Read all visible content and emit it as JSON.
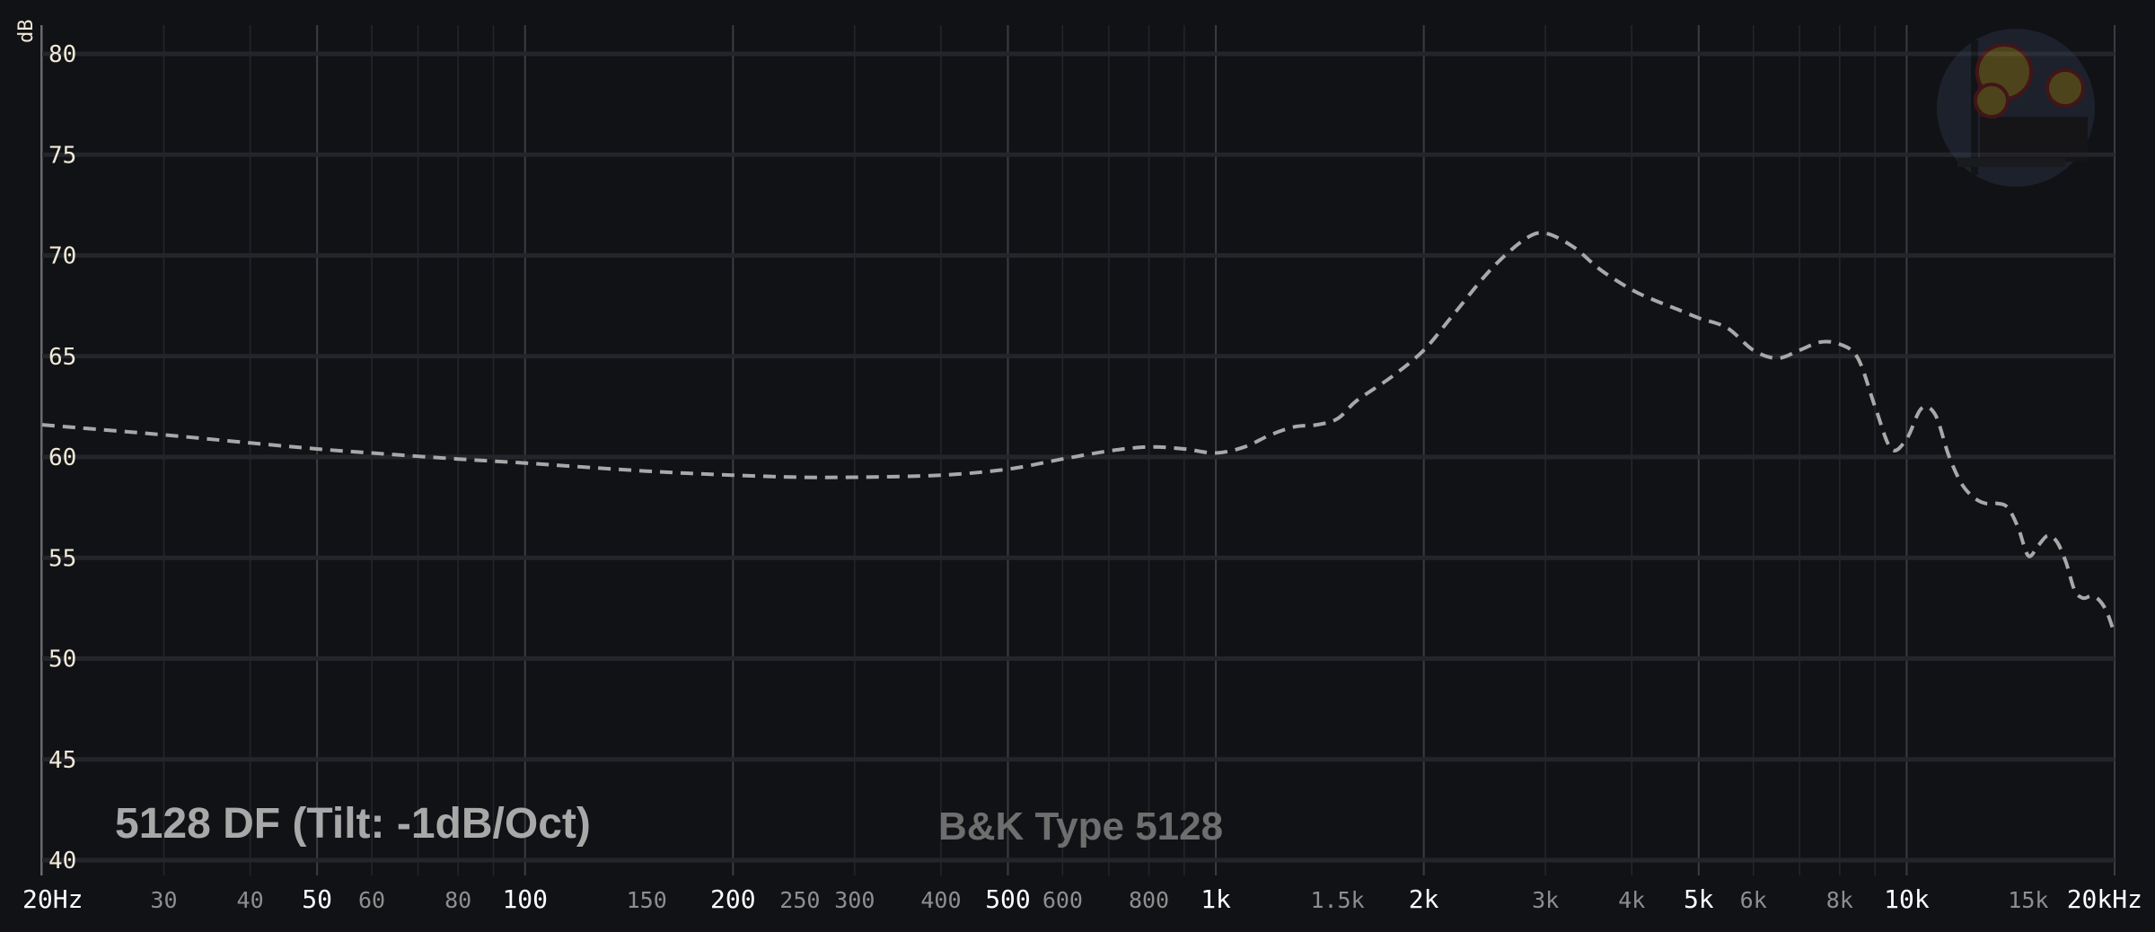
{
  "chart_data": {
    "type": "line",
    "ylabel": "dB",
    "xlabel": "",
    "xscale": "log",
    "xlim": [
      20,
      20000
    ],
    "ylim": [
      40,
      81
    ],
    "grid": true,
    "yticks": [
      40,
      45,
      50,
      55,
      60,
      65,
      70,
      75,
      80
    ],
    "xticks": [
      {
        "value": 20,
        "label": "20Hz",
        "major": true
      },
      {
        "value": 30,
        "label": "30",
        "major": false
      },
      {
        "value": 40,
        "label": "40",
        "major": false
      },
      {
        "value": 50,
        "label": "50",
        "major": true
      },
      {
        "value": 60,
        "label": "60",
        "major": false
      },
      {
        "value": 80,
        "label": "80",
        "major": false
      },
      {
        "value": 100,
        "label": "100",
        "major": true
      },
      {
        "value": 150,
        "label": "150",
        "major": false
      },
      {
        "value": 200,
        "label": "200",
        "major": true
      },
      {
        "value": 250,
        "label": "250",
        "major": false
      },
      {
        "value": 300,
        "label": "300",
        "major": false
      },
      {
        "value": 400,
        "label": "400",
        "major": false
      },
      {
        "value": 500,
        "label": "500",
        "major": true
      },
      {
        "value": 600,
        "label": "600",
        "major": false
      },
      {
        "value": 800,
        "label": "800",
        "major": false
      },
      {
        "value": 1000,
        "label": "1k",
        "major": true
      },
      {
        "value": 1500,
        "label": "1.5k",
        "major": false
      },
      {
        "value": 2000,
        "label": "2k",
        "major": true
      },
      {
        "value": 3000,
        "label": "3k",
        "major": false
      },
      {
        "value": 4000,
        "label": "4k",
        "major": false
      },
      {
        "value": 5000,
        "label": "5k",
        "major": true
      },
      {
        "value": 6000,
        "label": "6k",
        "major": false
      },
      {
        "value": 8000,
        "label": "8k",
        "major": false
      },
      {
        "value": 10000,
        "label": "10k",
        "major": true
      },
      {
        "value": 15000,
        "label": "15k",
        "major": false
      },
      {
        "value": 20000,
        "label": "20kHz",
        "major": true
      }
    ],
    "series": [
      {
        "name": "5128 DF (Tilt: -1dB/Oct)",
        "color": "#a8a8a8",
        "style": "dashed",
        "x": [
          20,
          30,
          40,
          50,
          60,
          80,
          100,
          150,
          200,
          250,
          300,
          400,
          500,
          600,
          700,
          800,
          900,
          1000,
          1100,
          1200,
          1300,
          1400,
          1500,
          1600,
          1800,
          2000,
          2200,
          2500,
          2800,
          3000,
          3300,
          3600,
          4000,
          4300,
          4600,
          5000,
          5500,
          6000,
          6500,
          7000,
          7500,
          8000,
          8500,
          9000,
          9500,
          10000,
          10500,
          11000,
          11500,
          12000,
          12500,
          13000,
          13500,
          14000,
          14500,
          15000,
          15500,
          16000,
          16500,
          17000,
          17500,
          18000,
          18500,
          19000,
          19500,
          20000
        ],
        "y": [
          61.6,
          61.1,
          60.7,
          60.4,
          60.2,
          59.9,
          59.7,
          59.3,
          59.1,
          59.0,
          59.0,
          59.1,
          59.4,
          59.9,
          60.3,
          60.5,
          60.4,
          60.2,
          60.5,
          61.1,
          61.5,
          61.6,
          61.9,
          62.8,
          64.0,
          65.3,
          67.0,
          69.3,
          70.8,
          71.1,
          70.4,
          69.3,
          68.3,
          67.8,
          67.4,
          66.9,
          66.4,
          65.3,
          64.9,
          65.3,
          65.7,
          65.6,
          64.9,
          62.5,
          60.4,
          60.9,
          62.4,
          62.1,
          60.1,
          58.7,
          58.0,
          57.7,
          57.7,
          57.5,
          56.5,
          55.1,
          55.6,
          56.1,
          55.8,
          54.8,
          53.4,
          53.0,
          53.1,
          52.9,
          52.3,
          51.2
        ]
      }
    ],
    "annotations": {
      "curve_label": "5128 DF (Tilt: -1dB/Oct)",
      "watermark": "B&K Type 5128"
    }
  }
}
